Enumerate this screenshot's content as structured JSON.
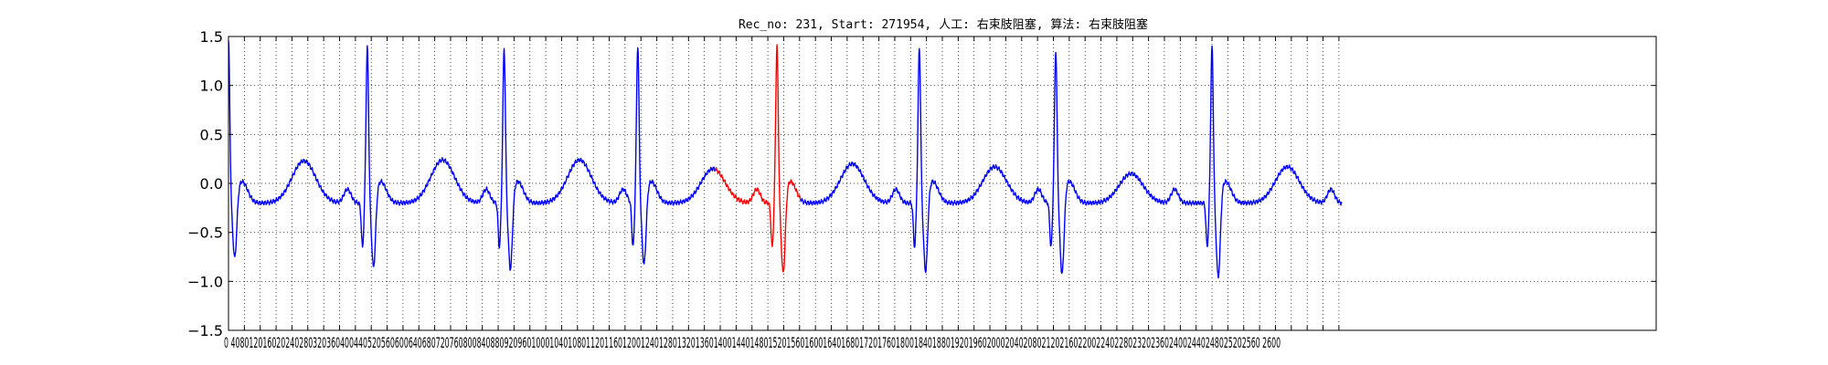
{
  "chart_data": {
    "type": "line",
    "title": "Rec_no: 231, Start: 271954, 人工: 右束肢阻塞, 算法: 右束肢阻塞",
    "xlabel": "",
    "ylabel": "",
    "xlim": [
      0,
      3600
    ],
    "ylim": [
      -1.5,
      1.5
    ],
    "grid": true,
    "grid_style": "dotted",
    "x_tick_step": 40,
    "x_tick_max": 2800,
    "y_ticks": [
      -1.5,
      -1.0,
      -0.5,
      0.0,
      0.5,
      1.0,
      1.5
    ],
    "y_tick_labels": [
      "−1.5",
      "−1.0",
      "−0.5",
      "0.0",
      "0.5",
      "1.0",
      "1.5"
    ],
    "x_tick_labels_rendered": "0 4080120160202402803203604004405205606006406807207608008408809209601000104010801120116012001240128013201360140014401480152015601600164016801720176018001840188019201960200020402080212021602200224022802320236024002440248025202560 2600",
    "signal_end_x": 2808,
    "segments": [
      {
        "name": "",
        "color": "#0000ff",
        "x_range": [
          0,
          1229
        ]
      },
      {
        "name": "",
        "color": "#ff0000",
        "x_range": [
          1229,
          1443
        ]
      },
      {
        "name": "",
        "color": "#0000ff",
        "x_range": [
          1443,
          2808
        ]
      }
    ],
    "beats": [
      {
        "r_x": 0,
        "r_y": 1.45,
        "s_y": -0.9,
        "t_y": 0.28
      },
      {
        "r_x": 350,
        "r_y": 1.38,
        "s_y": -1.0,
        "t_y": 0.29
      },
      {
        "r_x": 695,
        "r_y": 1.37,
        "s_y": -1.02,
        "t_y": 0.29
      },
      {
        "r_x": 1032,
        "r_y": 1.4,
        "s_y": -0.97,
        "t_y": 0.2
      },
      {
        "r_x": 1383,
        "r_y": 1.39,
        "s_y": -1.06,
        "t_y": 0.25
      },
      {
        "r_x": 1742,
        "r_y": 1.38,
        "s_y": -1.04,
        "t_y": 0.22
      },
      {
        "r_x": 2086,
        "r_y": 1.35,
        "s_y": -1.07,
        "t_y": 0.15
      },
      {
        "r_x": 2480,
        "r_y": 1.39,
        "s_y": -1.1,
        "t_y": 0.22
      }
    ]
  }
}
